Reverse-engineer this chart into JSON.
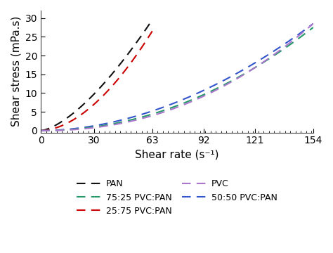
{
  "title": "",
  "xlabel": "Shear rate (s⁻¹)",
  "ylabel": "Shear stress (mPa.s)",
  "xlim": [
    0,
    154
  ],
  "ylim": [
    -0.5,
    32
  ],
  "xticks": [
    0,
    30,
    63,
    92,
    121,
    154
  ],
  "yticks": [
    0,
    5,
    10,
    15,
    20,
    25,
    30
  ],
  "series": [
    {
      "label": "PAN",
      "color": "#111111",
      "x_end": 63,
      "y_end": 29.5,
      "power": 1.5
    },
    {
      "label": "25:75 PVC:PAN",
      "color": "#cc0000",
      "x_end": 63,
      "y_end": 26.5,
      "power": 1.8
    },
    {
      "label": "50:50 PVC:PAN",
      "color": "#3355cc",
      "x_end": 154,
      "y_end": 28.5,
      "power": 1.9
    },
    {
      "label": "75:25 PVC:PAN",
      "color": "#229966",
      "x_end": 154,
      "y_end": 27.5,
      "power": 2.05
    },
    {
      "label": "PVC",
      "color": "#aa77cc",
      "x_end": 154,
      "y_end": 28.5,
      "power": 2.2
    }
  ],
  "legend_ncol": 2,
  "legend_order": [
    0,
    3,
    1,
    4,
    2
  ],
  "legend_fontsize": 9,
  "axis_fontsize": 11,
  "tick_fontsize": 10,
  "linewidth": 1.5,
  "dash_pattern": [
    6,
    4
  ],
  "background_color": "#ffffff"
}
